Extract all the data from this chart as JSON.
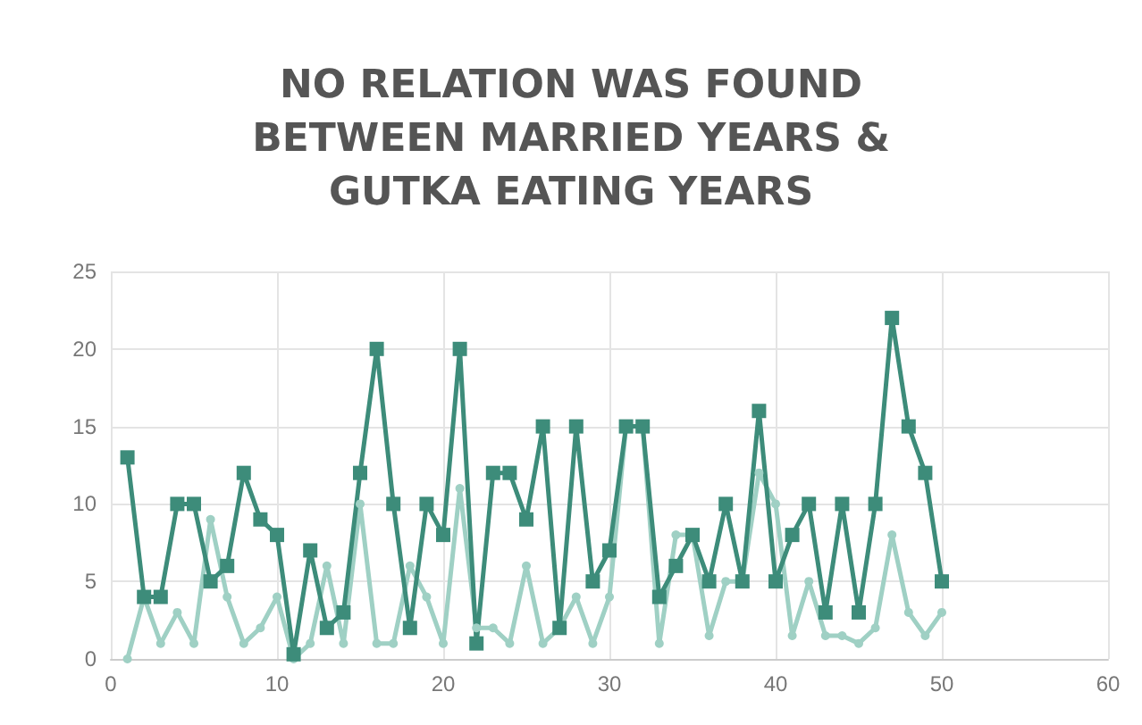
{
  "chart_data": {
    "type": "line",
    "title": "NO RELATION WAS FOUND\nBETWEEN MARRIED YEARS &\nGUTKA EATING YEARS",
    "x": [
      1,
      2,
      3,
      4,
      5,
      6,
      7,
      8,
      9,
      10,
      11,
      12,
      13,
      14,
      15,
      16,
      17,
      18,
      19,
      20,
      21,
      22,
      23,
      24,
      25,
      26,
      27,
      28,
      29,
      30,
      31,
      32,
      33,
      34,
      35,
      36,
      37,
      38,
      39,
      40,
      41,
      42,
      43,
      44,
      45,
      46,
      47,
      48,
      49,
      50
    ],
    "series": [
      {
        "color": "#9fd0c4",
        "marker": "circle",
        "values": [
          0,
          4,
          1,
          3,
          1,
          9,
          4,
          1,
          2,
          4,
          0,
          1,
          6,
          1,
          10,
          1,
          1,
          6,
          4,
          1,
          11,
          2,
          2,
          1,
          6,
          1,
          2,
          4,
          1,
          4,
          15,
          15,
          1,
          8,
          8,
          1.5,
          5,
          5,
          12,
          10,
          1.5,
          5,
          1.5,
          1.5,
          1,
          2,
          8,
          3,
          1.5,
          3
        ]
      },
      {
        "color": "#3d8c7a",
        "marker": "square",
        "values": [
          13,
          4,
          4,
          10,
          10,
          5,
          6,
          12,
          9,
          8,
          0.3,
          7,
          2,
          3,
          12,
          20,
          10,
          2,
          10,
          8,
          20,
          1,
          12,
          12,
          9,
          15,
          2,
          15,
          5,
          7,
          15,
          15,
          4,
          6,
          8,
          5,
          10,
          5,
          16,
          5,
          8,
          10,
          3,
          10,
          3,
          10,
          22,
          15,
          12,
          5
        ]
      }
    ],
    "xlim": [
      0,
      60
    ],
    "xticks": [
      0,
      10,
      20,
      30,
      40,
      50,
      60
    ],
    "ylim": [
      0,
      25
    ],
    "yticks": [
      0,
      5,
      10,
      15,
      20,
      25
    ],
    "grid": true,
    "line_style": "solid"
  }
}
